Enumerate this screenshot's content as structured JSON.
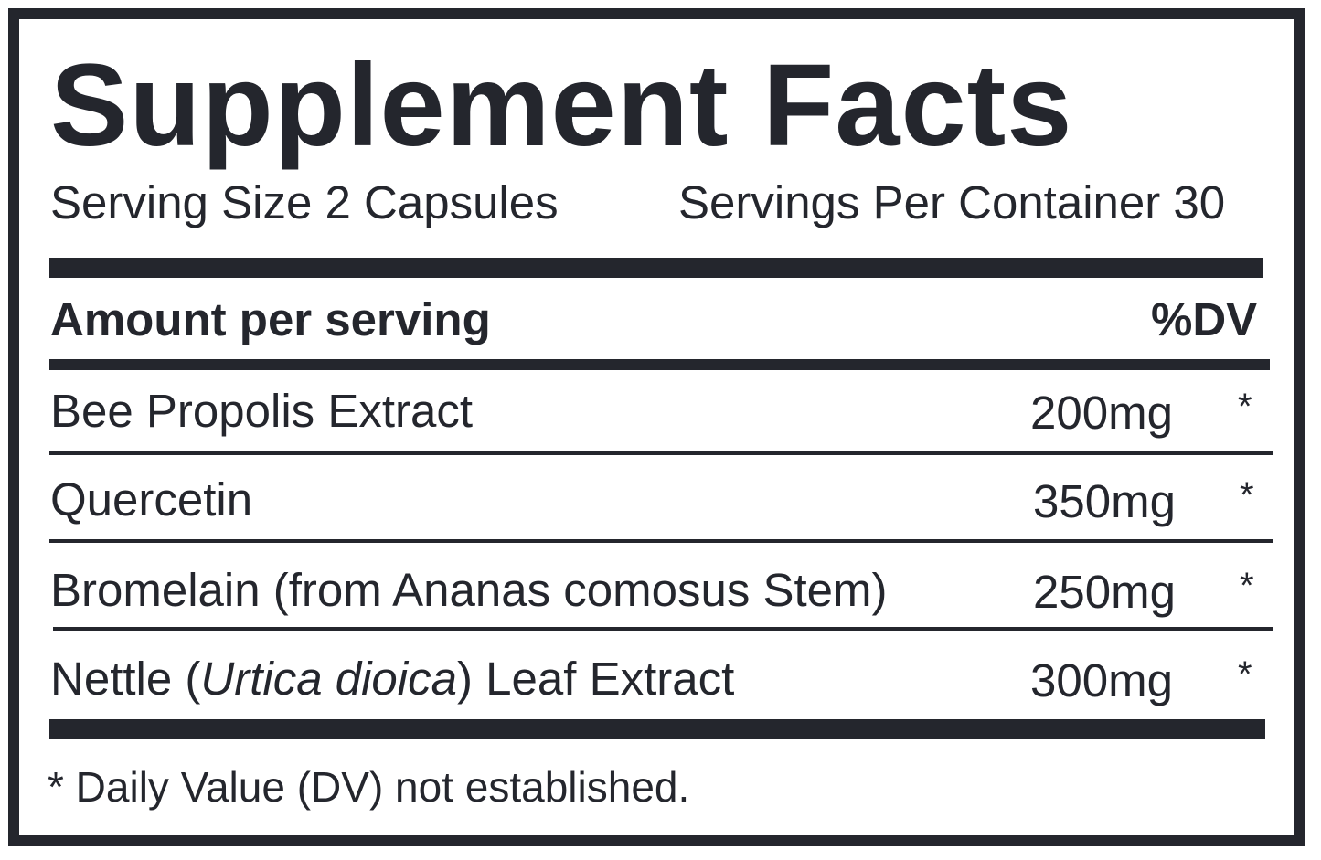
{
  "label": {
    "title": "Supplement Facts",
    "serving_size": "Serving Size 2 Capsules",
    "servings_per_container": "Servings Per Container 30",
    "header_amount": "Amount per serving",
    "header_dv": "%DV",
    "ingredients": [
      {
        "name": "Bee Propolis Extract",
        "amount": "200mg",
        "dv": "*"
      },
      {
        "name": "Quercetin",
        "amount": "350mg",
        "dv": "*"
      },
      {
        "name": "Bromelain (from Ananas comosus Stem)",
        "amount": "250mg",
        "dv": "*"
      },
      {
        "name_prefix": "Nettle (",
        "name_italic": "Urtica dioica",
        "name_suffix": ") Leaf Extract",
        "amount": "300mg",
        "dv": "*"
      }
    ],
    "footnote": "* Daily Value (DV) not established."
  },
  "colors": {
    "ink": "#24262d",
    "background": "#ffffff"
  }
}
